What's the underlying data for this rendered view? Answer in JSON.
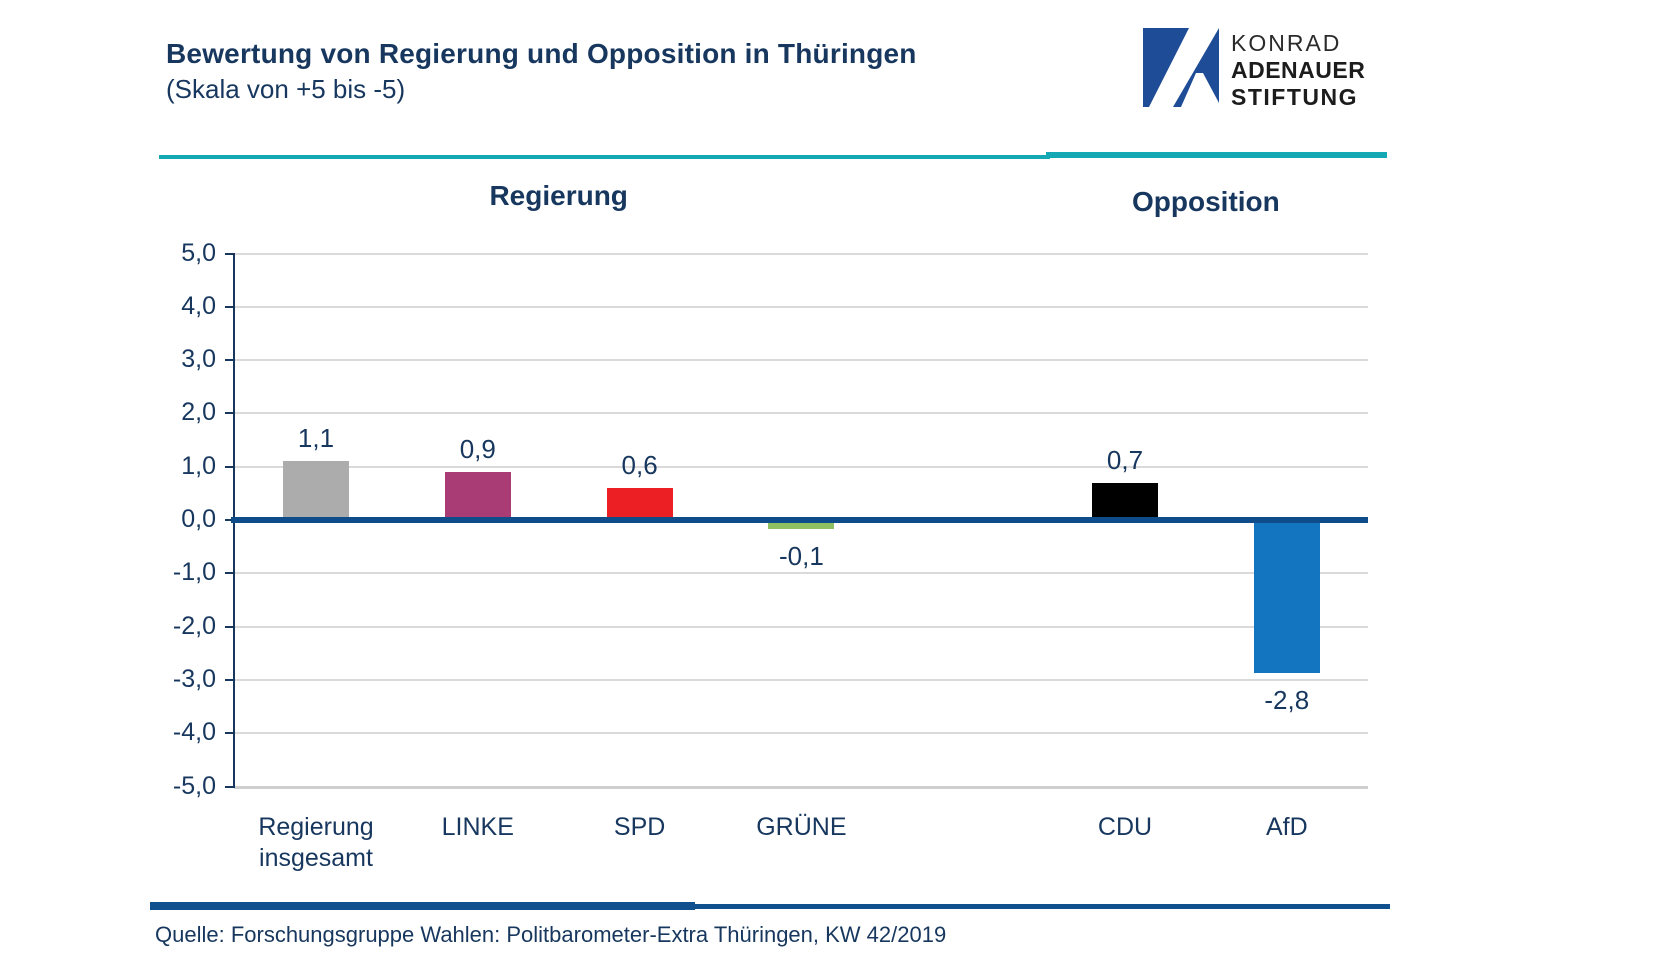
{
  "page": {
    "title": "Bewertung von Regierung und Opposition in Thüringen",
    "subtitle": "(Skala von +5 bis -5)"
  },
  "logo": {
    "line1": "KONRAD",
    "line2": "ADENAUER",
    "line3": "STIFTUNG",
    "mark_color": "#1E4C96",
    "mark_icon": "kas-a-mark"
  },
  "chart_data": {
    "type": "bar",
    "title": "Bewertung von Regierung und Opposition in Thüringen",
    "subtitle": "(Skala von +5 bis -5)",
    "groups": [
      {
        "label": "Regierung",
        "bars": [
          {
            "category": "Regierung insgesamt",
            "value": 1.1,
            "value_label": "1,1",
            "color": "#ACACAC"
          },
          {
            "category": "LINKE",
            "value": 0.9,
            "value_label": "0,9",
            "color": "#A93C74"
          },
          {
            "category": "SPD",
            "value": 0.6,
            "value_label": "0,6",
            "color": "#EC2024"
          },
          {
            "category": "GRÜNE",
            "value": -0.1,
            "value_label": "-0,1",
            "color": "#8FC162"
          }
        ]
      },
      {
        "label": "Opposition",
        "bars": [
          {
            "category": "CDU",
            "value": 0.7,
            "value_label": "0,7",
            "color": "#000000"
          },
          {
            "category": "AfD",
            "value": -2.8,
            "value_label": "-2,8",
            "color": "#1375C0"
          }
        ]
      }
    ],
    "y_axis": {
      "min": -5,
      "max": 5,
      "step": 1,
      "tick_labels": [
        "5,0",
        "4,0",
        "3,0",
        "2,0",
        "1,0",
        "0,0",
        "-1,0",
        "-2,0",
        "-3,0",
        "-4,0",
        "-5,0"
      ]
    },
    "grid": true,
    "legend": "none",
    "accent_colors": {
      "text_navy": "#17375E",
      "zero_line": "#0F4C8A",
      "divider_teal": "#13A8B3",
      "divider_navy": "#11508E",
      "gridline": "#DADADA"
    }
  },
  "source": "Quelle: Forschungsgruppe Wahlen: Politbarometer-Extra Thüringen, KW 42/2019"
}
